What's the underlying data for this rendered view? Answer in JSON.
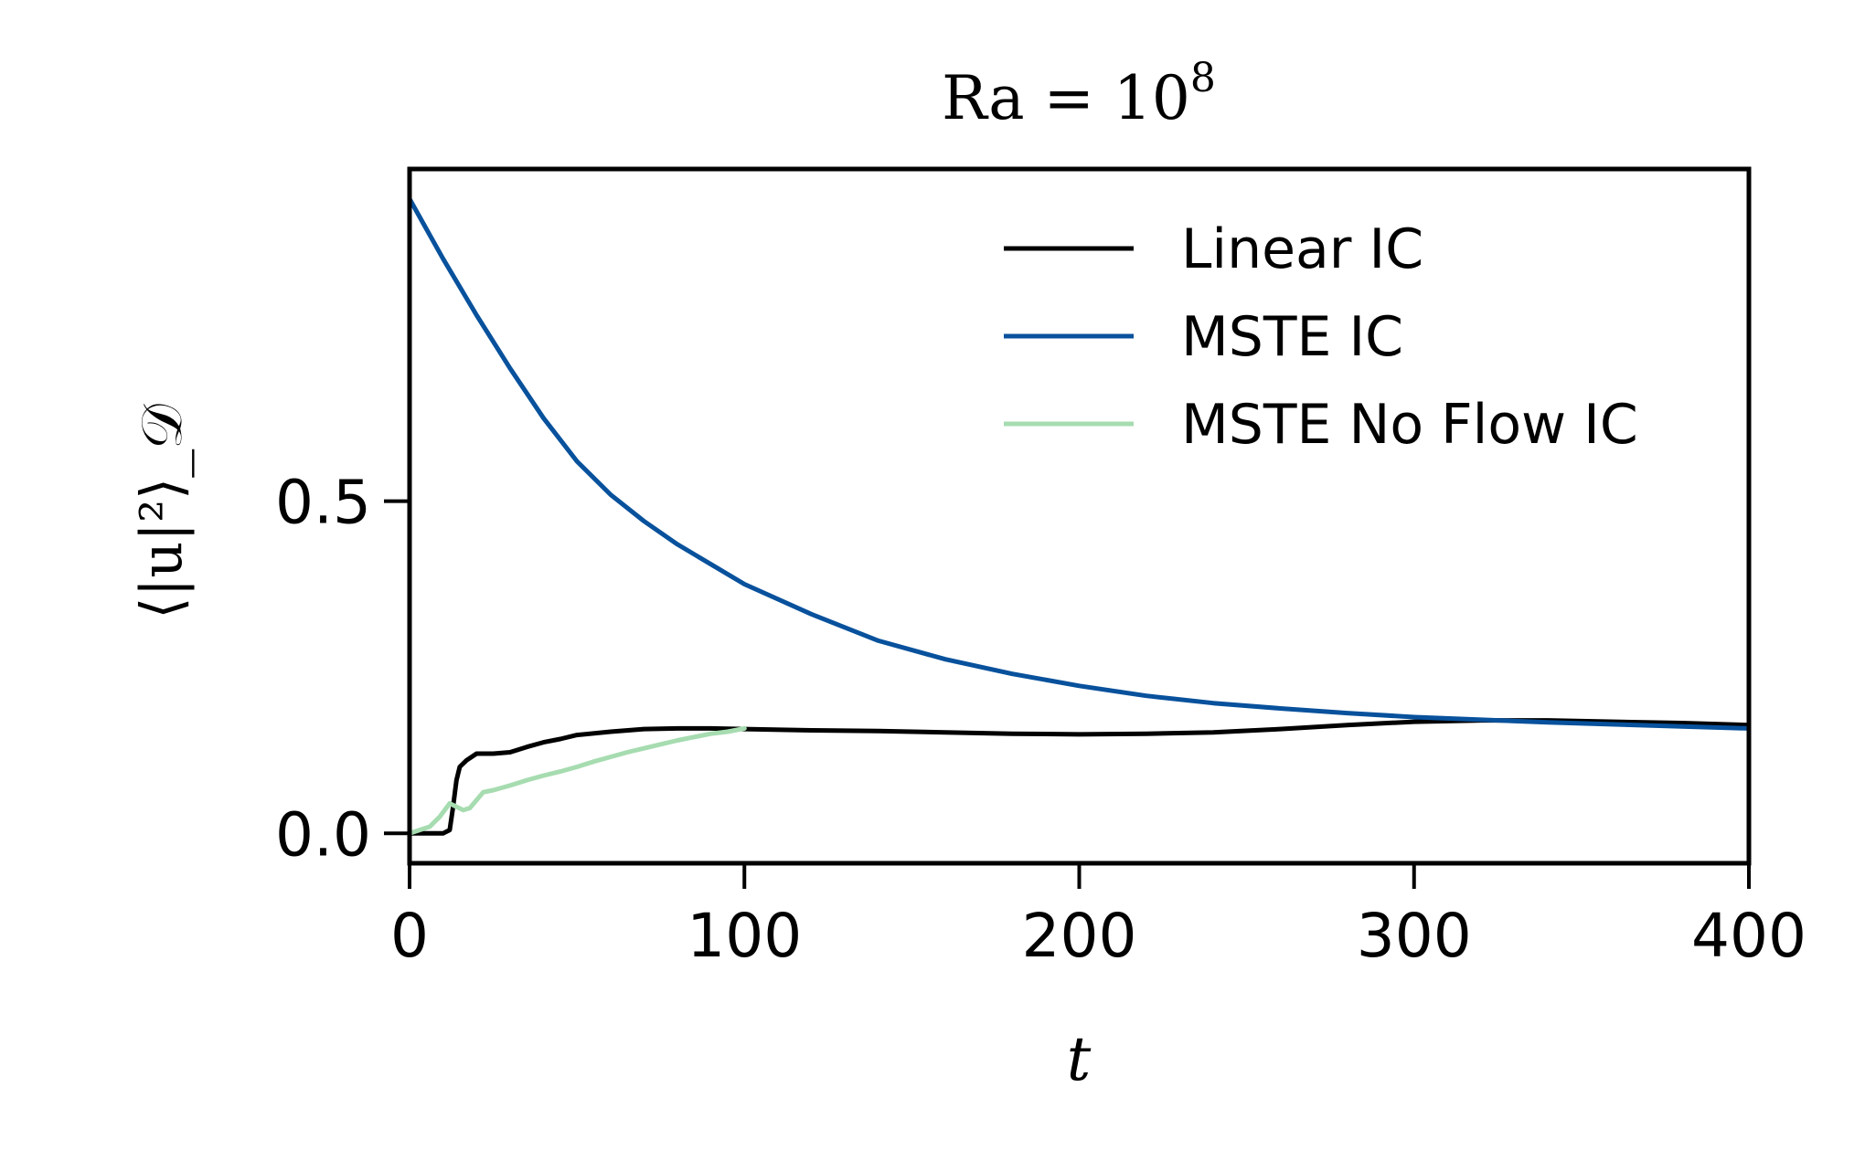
{
  "chart_data": {
    "type": "line",
    "title_base": "Ra = 10",
    "title_exponent": "8",
    "xlabel": "t",
    "ylabel": "⟨|u|²⟩_𝒟",
    "xlim": [
      0,
      400
    ],
    "ylim": [
      -0.045,
      1.0
    ],
    "xticks": [
      "0",
      "100",
      "200",
      "300",
      "400"
    ],
    "yticks": [
      "0.0",
      "0.5"
    ],
    "grid": false,
    "legend_position": "top-right",
    "series": [
      {
        "name": "Linear IC",
        "color": "#000000",
        "x": [
          0,
          5,
          10,
          12,
          13,
          14,
          15,
          17,
          20,
          25,
          30,
          35,
          40,
          45,
          50,
          60,
          70,
          80,
          90,
          100,
          120,
          140,
          160,
          180,
          200,
          220,
          240,
          260,
          280,
          300,
          320,
          340,
          360,
          380,
          400
        ],
        "y": [
          0.0,
          0.0,
          0.0,
          0.005,
          0.04,
          0.08,
          0.1,
          0.11,
          0.12,
          0.12,
          0.122,
          0.13,
          0.137,
          0.142,
          0.148,
          0.153,
          0.157,
          0.158,
          0.158,
          0.157,
          0.155,
          0.154,
          0.152,
          0.15,
          0.149,
          0.15,
          0.152,
          0.157,
          0.163,
          0.168,
          0.17,
          0.17,
          0.168,
          0.166,
          0.163
        ]
      },
      {
        "name": "MSTE IC",
        "color": "#08519c",
        "x": [
          0,
          5,
          10,
          20,
          30,
          40,
          50,
          60,
          70,
          80,
          90,
          100,
          120,
          140,
          160,
          180,
          200,
          220,
          240,
          260,
          280,
          300,
          320,
          340,
          360,
          380,
          400
        ],
        "y": [
          0.955,
          0.91,
          0.865,
          0.78,
          0.7,
          0.625,
          0.56,
          0.51,
          0.47,
          0.435,
          0.405,
          0.375,
          0.33,
          0.29,
          0.262,
          0.24,
          0.222,
          0.207,
          0.196,
          0.188,
          0.181,
          0.175,
          0.171,
          0.167,
          0.164,
          0.161,
          0.158
        ]
      },
      {
        "name": "MSTE No Flow IC",
        "color": "#a6dcb0",
        "x": [
          0,
          3,
          6,
          9,
          12,
          14,
          16,
          18,
          20,
          22,
          25,
          30,
          35,
          40,
          45,
          50,
          55,
          60,
          65,
          70,
          75,
          80,
          85,
          90,
          95,
          100
        ],
        "y": [
          0.0,
          0.005,
          0.01,
          0.025,
          0.045,
          0.04,
          0.035,
          0.038,
          0.05,
          0.062,
          0.065,
          0.072,
          0.08,
          0.087,
          0.093,
          0.1,
          0.108,
          0.115,
          0.122,
          0.128,
          0.134,
          0.14,
          0.145,
          0.15,
          0.153,
          0.158
        ]
      }
    ]
  }
}
